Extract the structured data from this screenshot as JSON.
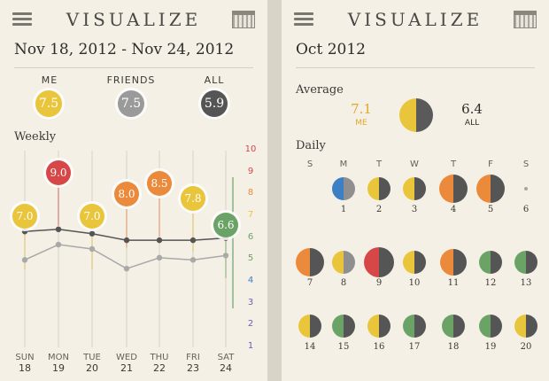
{
  "colors": {
    "yellow": "#e9c53b",
    "gray": "#8f8f8f",
    "dark": "#555555",
    "red": "#d64848",
    "orange": "#ec8a3b",
    "green": "#6aa365",
    "blue": "#3d7fc4",
    "greyline": "#a9a9a9",
    "darkline": "#555555"
  },
  "left": {
    "header": {
      "brand": "VISUALIZE",
      "menu_icon": "menu-icon",
      "calendar_icon": "calendar-icon"
    },
    "date_range": "Nov 18, 2012 - Nov 24, 2012",
    "summary": [
      {
        "label": "ME",
        "value": "7.5",
        "color": "#e9c53b"
      },
      {
        "label": "FRIENDS",
        "value": "7.5",
        "color": "#9a9a9a"
      },
      {
        "label": "ALL",
        "value": "5.9",
        "color": "#555555"
      }
    ],
    "weekly_label": "Weekly",
    "scale": [
      "10",
      "9",
      "8",
      "7",
      "6",
      "5",
      "4",
      "3",
      "2",
      "1"
    ],
    "scale_colors": [
      "#d64848",
      "#d64848",
      "#ec8a3b",
      "#e9c53b",
      "#6aa365",
      "#6aa365",
      "#3d7fc4",
      "#6b5fb0",
      "#6b5fb0",
      "#6b5fb0"
    ],
    "days": [
      {
        "name": "SUN",
        "date": "18",
        "me": "7.0",
        "color": "#e9c53b"
      },
      {
        "name": "MON",
        "date": "19",
        "me": "9.0",
        "color": "#d64848"
      },
      {
        "name": "TUE",
        "date": "20",
        "me": "7.0",
        "color": "#e9c53b"
      },
      {
        "name": "WED",
        "date": "21",
        "me": "8.0",
        "color": "#ec8a3b"
      },
      {
        "name": "THU",
        "date": "22",
        "me": "8.5",
        "color": "#ec8a3b"
      },
      {
        "name": "FRI",
        "date": "23",
        "me": "7.8",
        "color": "#e9c53b"
      },
      {
        "name": "SAT",
        "date": "24",
        "me": "6.6",
        "color": "#6aa365"
      }
    ]
  },
  "chart_data": {
    "type": "line",
    "title": "Weekly",
    "categories": [
      "SUN 18",
      "MON 19",
      "TUE 20",
      "WED 21",
      "THU 22",
      "FRI 23",
      "SAT 24"
    ],
    "ylim": [
      1,
      10
    ],
    "series": [
      {
        "name": "ME",
        "values": [
          7.0,
          9.0,
          7.0,
          8.0,
          8.5,
          7.8,
          6.6
        ]
      },
      {
        "values": [
          6.3,
          6.4,
          6.2,
          5.9,
          5.9,
          5.9,
          6.0
        ]
      },
      {
        "values": [
          5.0,
          5.7,
          5.5,
          4.6,
          5.1,
          5.0,
          5.2
        ]
      }
    ]
  },
  "right": {
    "header": {
      "brand": "VISUALIZE",
      "menu_icon": "menu-icon",
      "calendar_icon": "calendar-icon"
    },
    "month": "Oct 2012",
    "average_label": "Average",
    "me_value": "7.1",
    "me_label": "ME",
    "all_value": "6.4",
    "all_label": "ALL",
    "daily_label": "Daily",
    "weekdays": [
      "S",
      "M",
      "T",
      "W",
      "T",
      "F",
      "S"
    ],
    "weeks": [
      [
        null,
        {
          "d": "1",
          "l": "blue",
          "r": "gray"
        },
        {
          "d": "2",
          "l": "yellow",
          "r": "dark"
        },
        {
          "d": "3",
          "l": "yellow",
          "r": "dark"
        },
        {
          "d": "4",
          "l": "orange",
          "r": "dark"
        },
        {
          "d": "5",
          "l": "orange",
          "r": "dark"
        },
        {
          "d": "6",
          "dot": true
        }
      ],
      [
        {
          "d": "7",
          "l": "orange",
          "r": "dark"
        },
        {
          "d": "8",
          "l": "yellow",
          "r": "gray"
        },
        {
          "d": "9",
          "l": "red",
          "r": "dark"
        },
        {
          "d": "10",
          "l": "yellow",
          "r": "dark"
        },
        {
          "d": "11",
          "l": "orange",
          "r": "dark"
        },
        {
          "d": "12",
          "l": "green",
          "r": "dark"
        },
        {
          "d": "13",
          "l": "green",
          "r": "dark"
        }
      ],
      [
        {
          "d": "14",
          "l": "yellow",
          "r": "dark"
        },
        {
          "d": "15",
          "l": "green",
          "r": "dark"
        },
        {
          "d": "16",
          "l": "yellow",
          "r": "dark"
        },
        {
          "d": "17",
          "l": "green",
          "r": "dark"
        },
        {
          "d": "18",
          "l": "green",
          "r": "dark"
        },
        {
          "d": "19",
          "l": "green",
          "r": "dark"
        },
        {
          "d": "20",
          "l": "yellow",
          "r": "dark"
        }
      ]
    ]
  }
}
